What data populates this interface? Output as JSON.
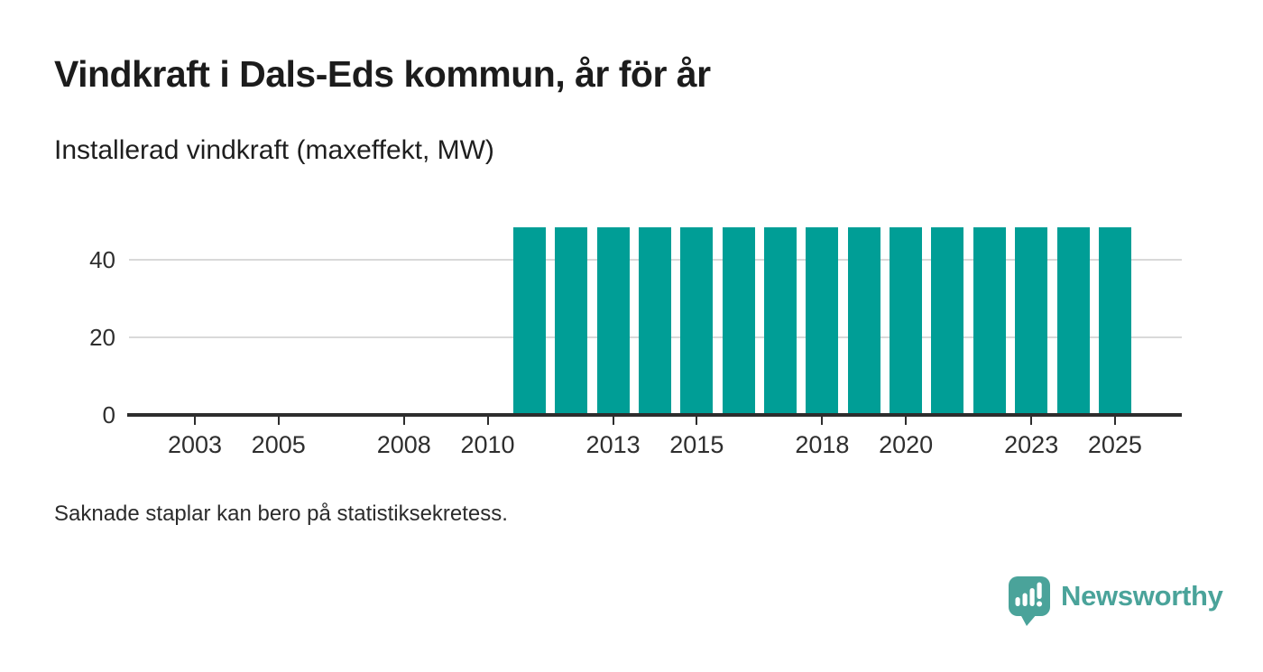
{
  "header": {
    "title": "Vindkraft i Dals-Eds kommun, år för år",
    "subtitle": "Installerad vindkraft (maxeffekt, MW)"
  },
  "footer": {
    "note": "Saknade staplar kan bero på statistiksekretess.",
    "brand": "Newsworthy"
  },
  "colors": {
    "bar": "#009e96",
    "brand": "#4aa39a",
    "axis": "#2d2d2d",
    "gridline": "#d9d9d9"
  },
  "chart_data": {
    "type": "bar",
    "title": "Vindkraft i Dals-Eds kommun, år för år",
    "subtitle": "Installerad vindkraft (maxeffekt, MW)",
    "ylabel": "Installerad vindkraft (maxeffekt, MW)",
    "xlabel": "",
    "x_axis": {
      "ticks": [
        2003,
        2005,
        2008,
        2010,
        2013,
        2015,
        2018,
        2020,
        2023,
        2025
      ],
      "range": [
        2002,
        2026
      ]
    },
    "y_axis": {
      "ticks": [
        0,
        20,
        40
      ],
      "gridlines": [
        20,
        40
      ],
      "range": [
        0,
        49
      ]
    },
    "grid": true,
    "legend": false,
    "series": [
      {
        "name": "Installerad vindkraft (maxeffekt, MW)",
        "points": [
          {
            "year": 2011,
            "value": 48.3
          },
          {
            "year": 2012,
            "value": 48.3
          },
          {
            "year": 2013,
            "value": 48.3
          },
          {
            "year": 2014,
            "value": 48.3
          },
          {
            "year": 2015,
            "value": 48.3
          },
          {
            "year": 2016,
            "value": 48.3
          },
          {
            "year": 2017,
            "value": 48.3
          },
          {
            "year": 2018,
            "value": 48.3
          },
          {
            "year": 2019,
            "value": 48.3
          },
          {
            "year": 2020,
            "value": 48.3
          },
          {
            "year": 2021,
            "value": 48.3
          },
          {
            "year": 2022,
            "value": 48.3
          },
          {
            "year": 2023,
            "value": 48.3
          },
          {
            "year": 2024,
            "value": 48.3
          },
          {
            "year": 2025,
            "value": 48.3
          }
        ]
      }
    ]
  }
}
